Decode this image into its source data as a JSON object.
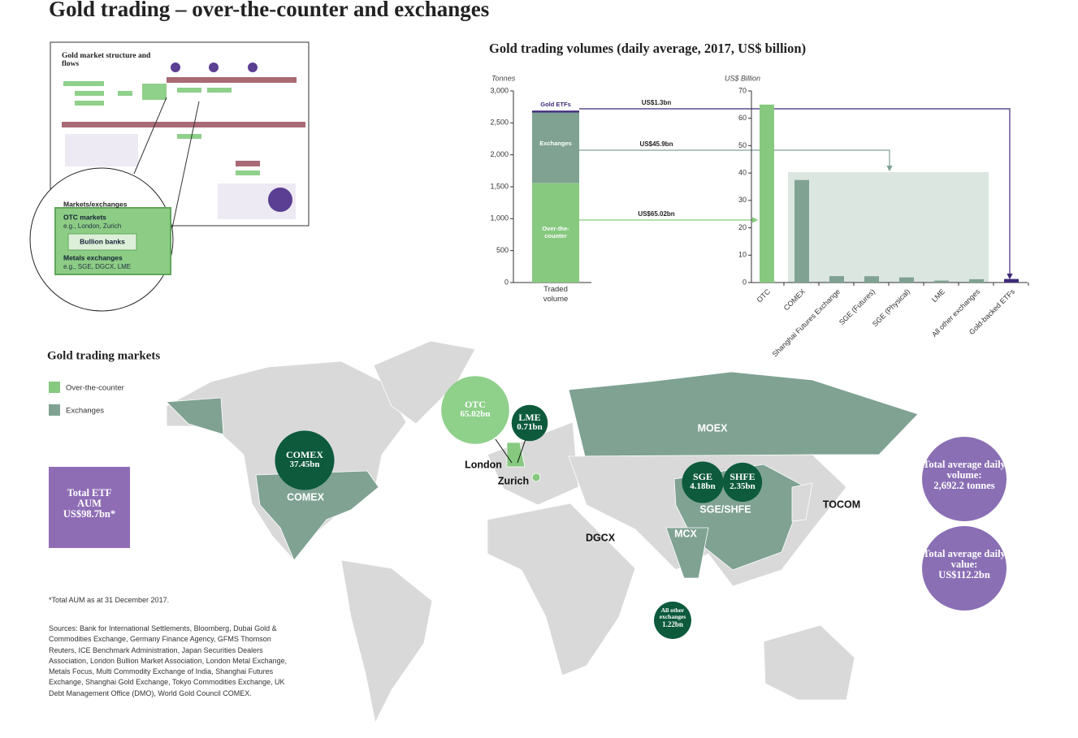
{
  "title": "Gold trading – over-the-counter and exchanges",
  "structure": {
    "thumbnail_title": "Gold market structure and flows",
    "heading": "Markets/exchanges",
    "otc": "OTC markets",
    "otc_examples": "e.g., London, Zurich",
    "banks": "Bullion banks",
    "metals": "Metals exchanges",
    "metals_examples": "e.g., SGE, DGCX, LME"
  },
  "chart_title": "Gold trading volumes (daily average, 2017, US$ billion)",
  "chart_data": [
    {
      "type": "stacked-bar",
      "y_label": "Tonnes",
      "categories": [
        "Traded volume"
      ],
      "series": [
        {
          "name": "Over-the-counter",
          "color": "#86c97f",
          "values": [
            1560
          ],
          "annotation": "US$65.02bn"
        },
        {
          "name": "Exchanges",
          "color": "#7fa293",
          "values": [
            1101
          ],
          "annotation": "US$45.9bn"
        },
        {
          "name": "Gold ETFs",
          "color": "#3f2a7a",
          "values": [
            31
          ],
          "annotation": "US$1.3bn"
        }
      ],
      "ylim": [
        0,
        3000
      ],
      "yticks": [
        0,
        500,
        {
          "value": 1000,
          "label": "1,000"
        },
        {
          "value": 1500,
          "label": "1,500"
        },
        {
          "value": 2000,
          "label": "2,000"
        },
        {
          "value": 2500,
          "label": "2,500"
        },
        {
          "value": 3000,
          "label": "3,000"
        }
      ]
    },
    {
      "type": "bar",
      "y_label": "US$ Billion",
      "categories": [
        "OTC",
        "COMEX",
        "Shanghai Futures Exchange",
        "SGE (Futures)",
        "SGE (Physical)",
        "LME",
        "All other exchanges",
        "Gold-backed ETFs"
      ],
      "values": [
        65.02,
        37.45,
        2.35,
        2.3,
        1.88,
        0.71,
        1.22,
        1.3
      ],
      "colors": [
        "#86c97f",
        "#7fa293",
        "#7fa293",
        "#7fa293",
        "#7fa293",
        "#7fa293",
        "#7fa293",
        "#3f2a7a"
      ],
      "ylim": [
        0,
        70
      ],
      "yticks": [
        0,
        10,
        20,
        30,
        40,
        50,
        60,
        70
      ]
    }
  ],
  "map": {
    "title": "Gold trading markets",
    "legend": [
      {
        "name": "Over-the-counter",
        "color": "#86c97f"
      },
      {
        "name": "Exchanges",
        "color": "#7fa293"
      }
    ],
    "places": [
      "MOEX",
      "COMEX",
      "London",
      "Zurich",
      "DGCX",
      "TOCOM",
      "SGE/SHFE",
      "MCX"
    ],
    "bubbles": [
      {
        "name": "OTC",
        "value": 65.02,
        "label": "65.02bn",
        "color": "#8fd08b"
      },
      {
        "name": "LME",
        "value": 0.71,
        "label": "0.71bn",
        "color": "#0d5a3d"
      },
      {
        "name": "COMEX",
        "value": 37.45,
        "label": "37.45bn",
        "color": "#0d5a3d"
      },
      {
        "name": "SGE",
        "value": 4.18,
        "label": "4.18bn",
        "color": "#0d5a3d"
      },
      {
        "name": "SHFE",
        "value": 2.35,
        "label": "2.35bn",
        "color": "#0d5a3d"
      },
      {
        "name": "All other exchanges",
        "value": 1.22,
        "label": "1.22bn",
        "color": "#0d5a3d"
      }
    ]
  },
  "etf_box": {
    "heading": "Total ETF AUM",
    "value": "US$98.7bn*"
  },
  "totals": [
    {
      "heading": "Total average daily volume:",
      "value": "2,692.2 tonnes"
    },
    {
      "heading": "Total average daily value:",
      "value": "US$112.2bn"
    }
  ],
  "footnote": "*Total AUM as at 31 December 2017.",
  "sources": "Sources: Bank for International Settlements, Bloomberg, Dubai Gold & Commodities Exchange, Germany Finance Agency, GFMS Thomson Reuters, ICE Benchmark Administration, Japan Securities Dealers Association, London Bullion Market Association, London Metal Exchange, Metals Focus, Multi Commodity Exchange of India, Shanghai Futures Exchange, Shanghai Gold Exchange, Tokyo Commodities Exchange, UK Debt Management Office (DMO), World Gold Council COMEX."
}
